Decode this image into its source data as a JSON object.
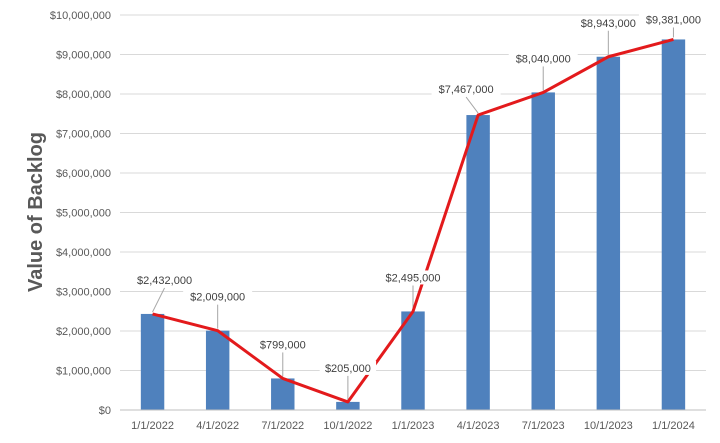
{
  "chart_data": {
    "type": "bar",
    "title": "",
    "xlabel": "",
    "ylabel": "Value of Backlog",
    "ylim": [
      0,
      10000000
    ],
    "yticks": [
      0,
      1000000,
      2000000,
      3000000,
      4000000,
      5000000,
      6000000,
      7000000,
      8000000,
      9000000,
      10000000
    ],
    "ytick_labels": [
      "$0",
      "$1,000,000",
      "$2,000,000",
      "$3,000,000",
      "$4,000,000",
      "$5,000,000",
      "$6,000,000",
      "$7,000,000",
      "$8,000,000",
      "$9,000,000",
      "$10,000,000"
    ],
    "categories": [
      "1/1/2022",
      "4/1/2022",
      "7/1/2022",
      "10/1/2022",
      "1/1/2023",
      "4/1/2023",
      "7/1/2023",
      "10/1/2023",
      "1/1/2024"
    ],
    "values": [
      2432000,
      2009000,
      799000,
      205000,
      2495000,
      7467000,
      8040000,
      8943000,
      9381000
    ],
    "data_labels": [
      "$2,432,000",
      "$2,009,000",
      "$799,000",
      "$205,000",
      "$2,495,000",
      "$7,467,000",
      "$8,040,000",
      "$8,943,000",
      "$9,381,000"
    ],
    "overlay_line": {
      "type": "line",
      "color": "#e31a1c",
      "follows": "values"
    },
    "bar_color": "#4f81bd",
    "grid": true,
    "grid_color": "#d9d9d9",
    "legend": "none"
  }
}
